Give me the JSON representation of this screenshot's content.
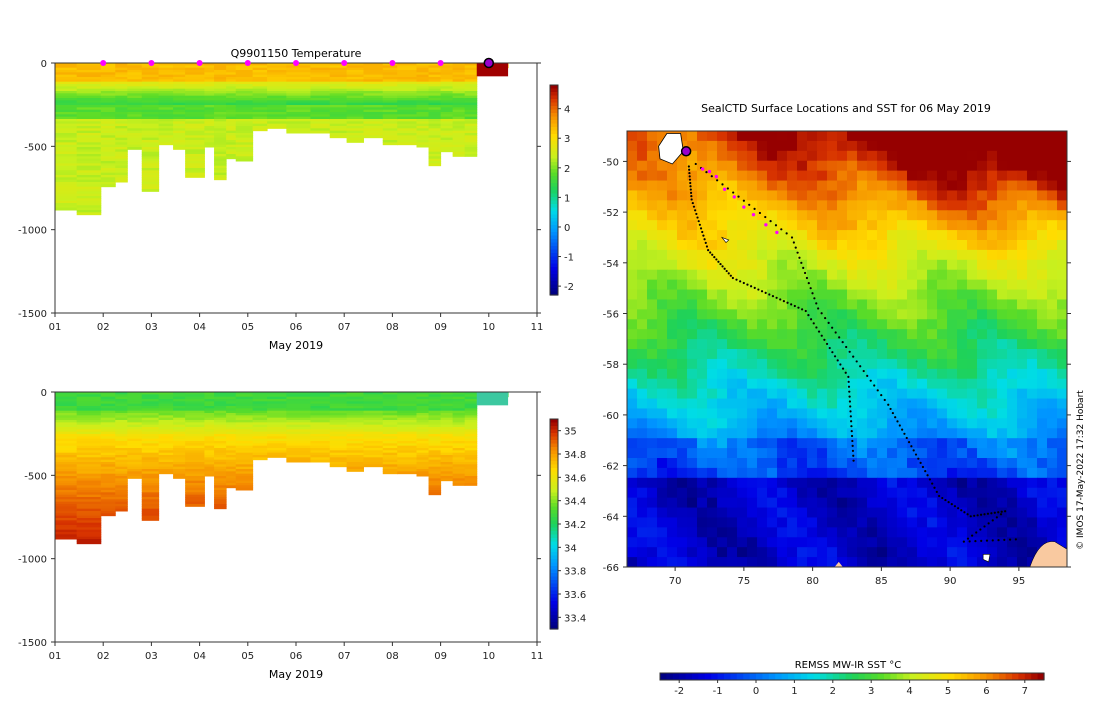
{
  "credit": "© IMOS 17-May-2022 17:32 Hobart",
  "chart_data": [
    {
      "type": "heatmap",
      "id": "temperature-profile",
      "title": "Q9901150  Temperature",
      "xlabel": "May 2019",
      "x_ticks": [
        "01",
        "02",
        "03",
        "04",
        "05",
        "06",
        "07",
        "08",
        "09",
        "10",
        "11"
      ],
      "xlim": [
        1,
        11
      ],
      "ylim": [
        -1500,
        0
      ],
      "y_ticks": [
        0,
        -500,
        -1000,
        -1500
      ],
      "surface_markers_day": [
        2,
        3,
        4,
        5,
        6,
        7,
        8,
        9
      ],
      "current_day": 10,
      "colorbar": {
        "min": -2.3,
        "max": 4.8,
        "ticks": [
          4,
          3,
          2,
          1,
          0,
          -1,
          -2
        ]
      },
      "profiles": [
        {
          "day": 1.0,
          "depth": 880
        },
        {
          "day": 1.45,
          "depth": 905
        },
        {
          "day": 1.95,
          "depth": 730
        },
        {
          "day": 2.25,
          "depth": 710
        },
        {
          "day": 2.5,
          "depth": 510
        },
        {
          "day": 2.8,
          "depth": 760
        },
        {
          "day": 3.15,
          "depth": 490
        },
        {
          "day": 3.45,
          "depth": 510
        },
        {
          "day": 3.7,
          "depth": 680
        },
        {
          "day": 4.1,
          "depth": 500
        },
        {
          "day": 4.3,
          "depth": 700
        },
        {
          "day": 4.55,
          "depth": 570
        },
        {
          "day": 4.75,
          "depth": 580
        },
        {
          "day": 5.1,
          "depth": 400
        },
        {
          "day": 5.4,
          "depth": 380
        },
        {
          "day": 5.8,
          "depth": 410
        },
        {
          "day": 6.3,
          "depth": 410
        },
        {
          "day": 6.7,
          "depth": 440
        },
        {
          "day": 7.05,
          "depth": 470
        },
        {
          "day": 7.4,
          "depth": 440
        },
        {
          "day": 7.8,
          "depth": 480
        },
        {
          "day": 8.1,
          "depth": 490
        },
        {
          "day": 8.5,
          "depth": 500
        },
        {
          "day": 8.75,
          "depth": 610
        },
        {
          "day": 9.0,
          "depth": 530
        },
        {
          "day": 9.25,
          "depth": 560
        },
        {
          "day": 9.5,
          "depth": 560
        },
        {
          "day": 9.75,
          "depth": 15
        },
        {
          "day": 10.4,
          "depth": 0
        }
      ]
    },
    {
      "type": "heatmap",
      "id": "salinity-profile",
      "title": "",
      "xlabel": "May 2019",
      "x_ticks": [
        "01",
        "02",
        "03",
        "04",
        "05",
        "06",
        "07",
        "08",
        "09",
        "10",
        "11"
      ],
      "xlim": [
        1,
        11
      ],
      "ylim": [
        -1500,
        0
      ],
      "y_ticks": [
        0,
        -500,
        -1000,
        -1500
      ],
      "colorbar": {
        "min": 33.3,
        "max": 35.1,
        "ticks": [
          35,
          34.8,
          34.6,
          34.4,
          34.2,
          34,
          33.8,
          33.6,
          33.4
        ]
      }
    },
    {
      "type": "heatmap",
      "id": "sst-map",
      "title": "SealCTD Surface Locations and SST for 06 May 2019",
      "xlabel": "",
      "ylabel": "",
      "xlim": [
        66.5,
        98.5
      ],
      "ylim": [
        -66,
        -48.8
      ],
      "x_ticks": [
        70,
        75,
        80,
        85,
        90,
        95
      ],
      "y_ticks": [
        -50,
        -52,
        -54,
        -56,
        -58,
        -60,
        -62,
        -64,
        -66
      ],
      "colorbar": {
        "label": "REMSS MW-IR SST °C",
        "min": -2.5,
        "max": 7.5,
        "ticks": [
          -2,
          -1,
          0,
          1,
          2,
          3,
          4,
          5,
          6,
          7
        ]
      },
      "track_current_position": {
        "lon": 70.8,
        "lat": -49.6
      },
      "track_recent_points": [
        {
          "lon": 72.0,
          "lat": -50.3
        },
        {
          "lon": 72.5,
          "lat": -50.4
        },
        {
          "lon": 73.0,
          "lat": -50.6
        },
        {
          "lon": 73.6,
          "lat": -51.1
        },
        {
          "lon": 74.3,
          "lat": -51.4
        },
        {
          "lon": 75.0,
          "lat": -51.8
        },
        {
          "lon": 75.7,
          "lat": -52.1
        },
        {
          "lon": 76.6,
          "lat": -52.5
        },
        {
          "lon": 77.4,
          "lat": -52.8
        }
      ],
      "sst_colors": [
        "#00007f",
        "#0000d0",
        "#0050ff",
        "#00a8ff",
        "#00e0ff",
        "#00d890",
        "#22cc22",
        "#80e020",
        "#d8f020",
        "#ffe000",
        "#ffb000",
        "#f07000",
        "#d83000",
        "#a00000"
      ],
      "land_color": "#f9c9a0",
      "track_color": "#000000",
      "marker_color": "#ff00ff"
    }
  ]
}
